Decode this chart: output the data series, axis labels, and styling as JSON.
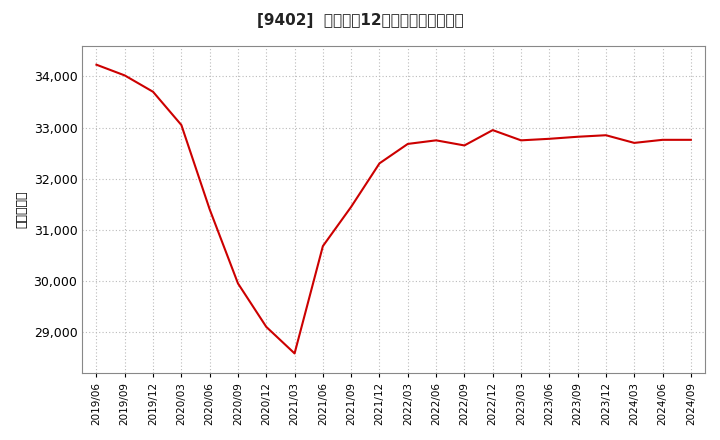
{
  "title": "[9402]  売上高だ12か月移動合計の推移",
  "ylabel": "（百万円）",
  "line_color": "#cc0000",
  "background_color": "#ffffff",
  "grid_color": "#bbbbbb",
  "dates": [
    "2019/06",
    "2019/09",
    "2019/12",
    "2020/03",
    "2020/06",
    "2020/09",
    "2020/12",
    "2021/03",
    "2021/06",
    "2021/09",
    "2021/12",
    "2022/03",
    "2022/06",
    "2022/09",
    "2022/12",
    "2023/03",
    "2023/06",
    "2023/09",
    "2023/12",
    "2024/03",
    "2024/06",
    "2024/09"
  ],
  "values": [
    34230,
    34020,
    33700,
    33050,
    31400,
    29950,
    29100,
    28580,
    30680,
    31450,
    32300,
    32680,
    32750,
    32650,
    32950,
    32750,
    32780,
    32820,
    32850,
    32700,
    32760,
    32760
  ],
  "xtick_labels": [
    "2019/06",
    "2019/09",
    "2019/12",
    "2020/03",
    "2020/06",
    "2020/09",
    "2020/12",
    "2021/03",
    "2021/06",
    "2021/09",
    "2021/12",
    "2022/03",
    "2022/06",
    "2022/09",
    "2022/12",
    "2023/03",
    "2023/06",
    "2023/09",
    "2023/12",
    "2024/03",
    "2024/06",
    "2024/09"
  ],
  "ylim": [
    28200,
    34600
  ],
  "yticks": [
    29000,
    30000,
    31000,
    32000,
    33000,
    34000
  ]
}
